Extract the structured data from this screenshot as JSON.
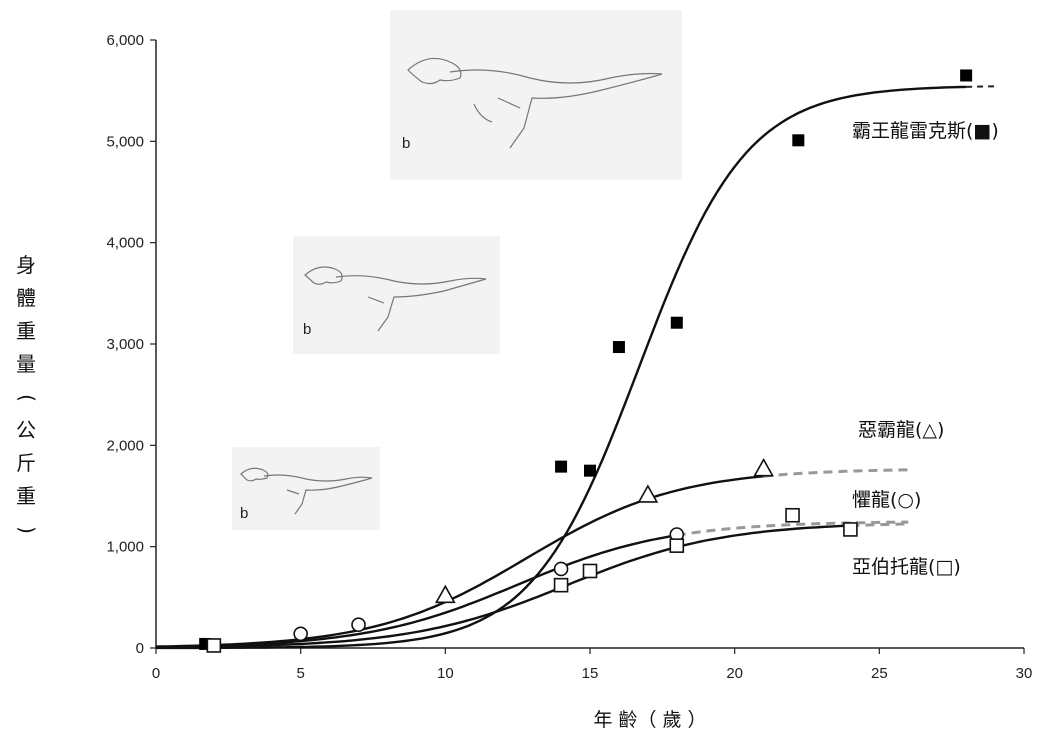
{
  "chart_data": {
    "type": "scatter",
    "xlabel": "年 齡（ 歲 ）",
    "ylabel": "身體重量(公斤重)",
    "xlim": [
      0,
      30
    ],
    "ylim": [
      0,
      6000
    ],
    "x_ticks": [
      "0",
      "5",
      "10",
      "15",
      "20",
      "25",
      "30"
    ],
    "y_ticks": [
      "0",
      "1,000",
      "2,000",
      "3,000",
      "4,000",
      "5,000",
      "6,000"
    ],
    "grid": false,
    "series": [
      {
        "name": "霸王龍雷克斯(■)",
        "marker": "square-filled",
        "points": [
          [
            1.7,
            40
          ],
          [
            14,
            1790
          ],
          [
            15,
            1750
          ],
          [
            16,
            2970
          ],
          [
            18,
            3210
          ],
          [
            22.2,
            5010
          ],
          [
            28,
            5650
          ]
        ],
        "curve": {
          "asymptote": 5550,
          "midpoint": 16.7,
          "rate": 0.54,
          "end": 28,
          "dash_end": 29
        }
      },
      {
        "name": "惡霸龍(△)",
        "marker": "triangle-open",
        "points": [
          [
            10,
            520
          ],
          [
            17,
            1510
          ],
          [
            21,
            1770
          ]
        ],
        "curve": {
          "asymptote": 1770,
          "midpoint": 12.8,
          "rate": 0.38,
          "end": 21,
          "dash_end": 26
        }
      },
      {
        "name": "懼龍(○)",
        "marker": "circle-open",
        "points": [
          [
            5,
            140
          ],
          [
            7,
            230
          ],
          [
            14,
            780
          ],
          [
            18,
            1120
          ]
        ],
        "curve": {
          "asymptote": 1250,
          "midpoint": 12.5,
          "rate": 0.38,
          "end": 18,
          "dash_end": 26
        }
      },
      {
        "name": "亞伯托龍(□)",
        "marker": "square-open",
        "points": [
          [
            2,
            25
          ],
          [
            14,
            620
          ],
          [
            15,
            760
          ],
          [
            18,
            1010
          ],
          [
            22,
            1310
          ],
          [
            24,
            1170
          ]
        ],
        "curve": {
          "asymptote": 1240,
          "midpoint": 14.2,
          "rate": 0.37,
          "end": 24,
          "dash_end": 26
        }
      }
    ]
  }
}
